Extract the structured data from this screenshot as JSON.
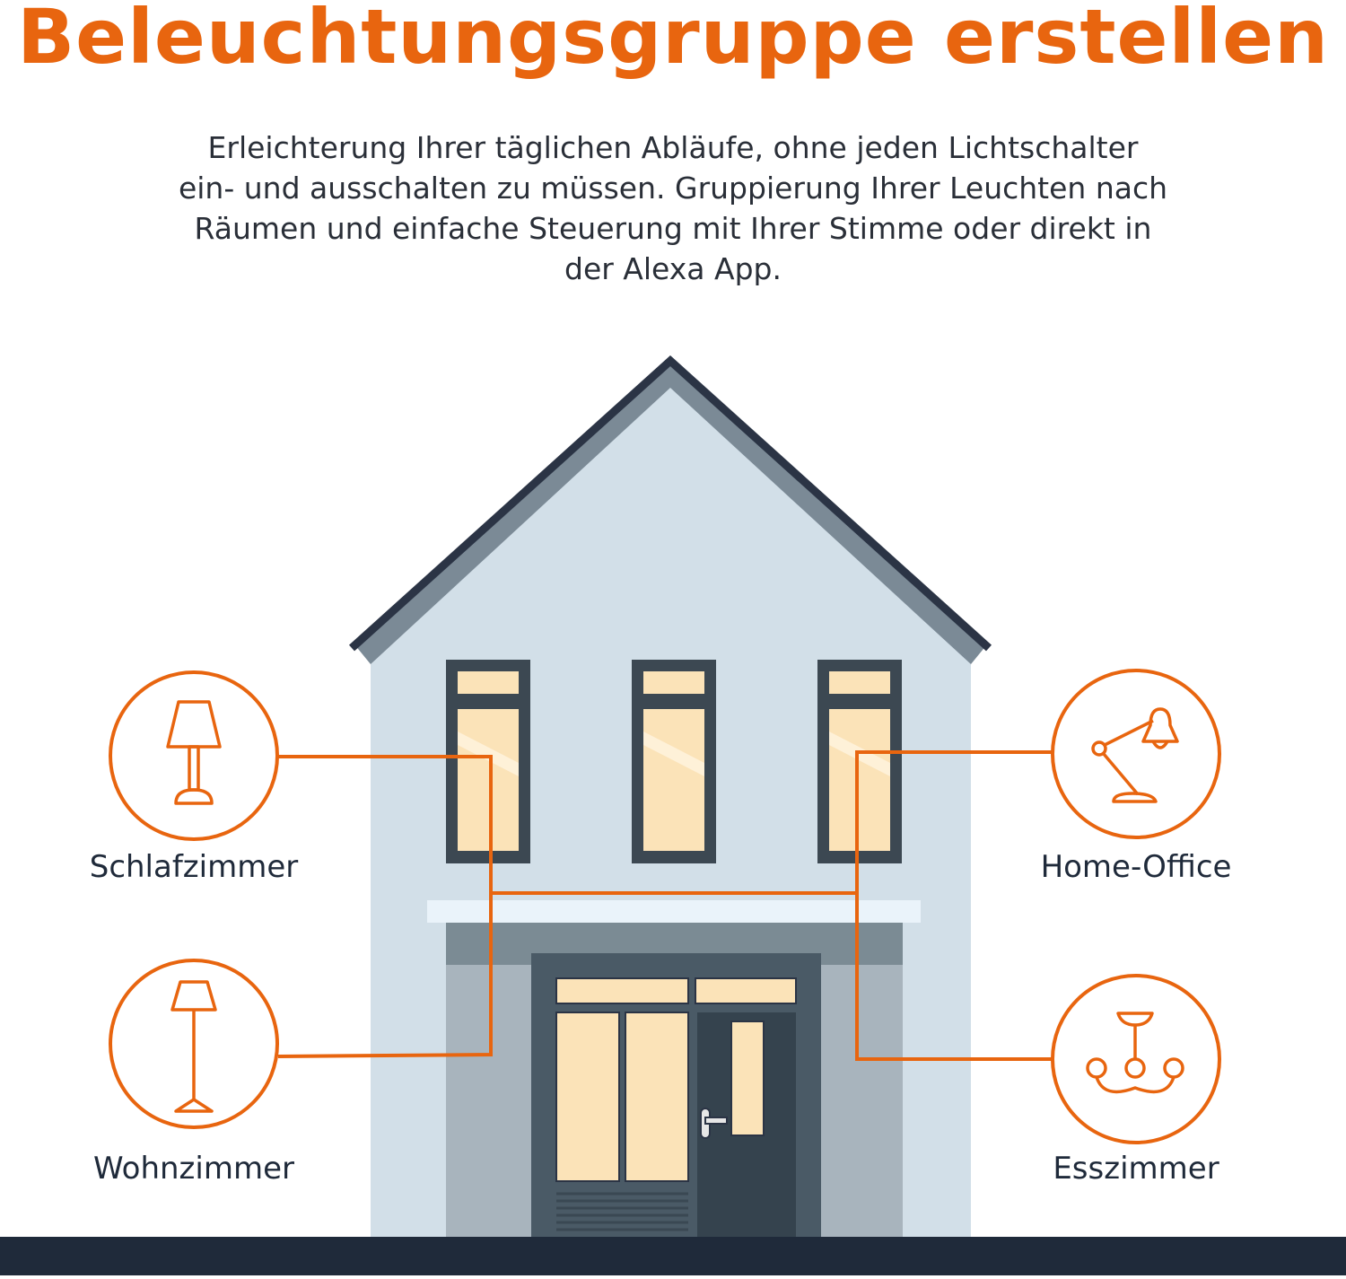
{
  "title": "Beleuchtungsgruppe erstellen",
  "subtitle_lines": [
    "Erleichterung Ihrer täglichen Abläufe, ohne jeden Lichtschalter",
    "ein- und ausschalten zu müssen. Gruppierung Ihrer Leuchten nach",
    "Räumen und einfache Steuerung mit Ihrer Stimme oder direkt in",
    "der Alexa App."
  ],
  "rooms": [
    {
      "label": "Schlafzimmer",
      "icon": "table-lamp-icon"
    },
    {
      "label": "Wohnzimmer",
      "icon": "floor-lamp-icon"
    },
    {
      "label": "Home-Office",
      "icon": "desk-lamp-icon"
    },
    {
      "label": "Esszimmer",
      "icon": "chandelier-icon"
    }
  ],
  "colors": {
    "accent": "#e8650f",
    "wall": "#d2dfe8",
    "roof": "#2b3445",
    "glass": "#fbe3b8",
    "ground": "#1f2a3a"
  }
}
